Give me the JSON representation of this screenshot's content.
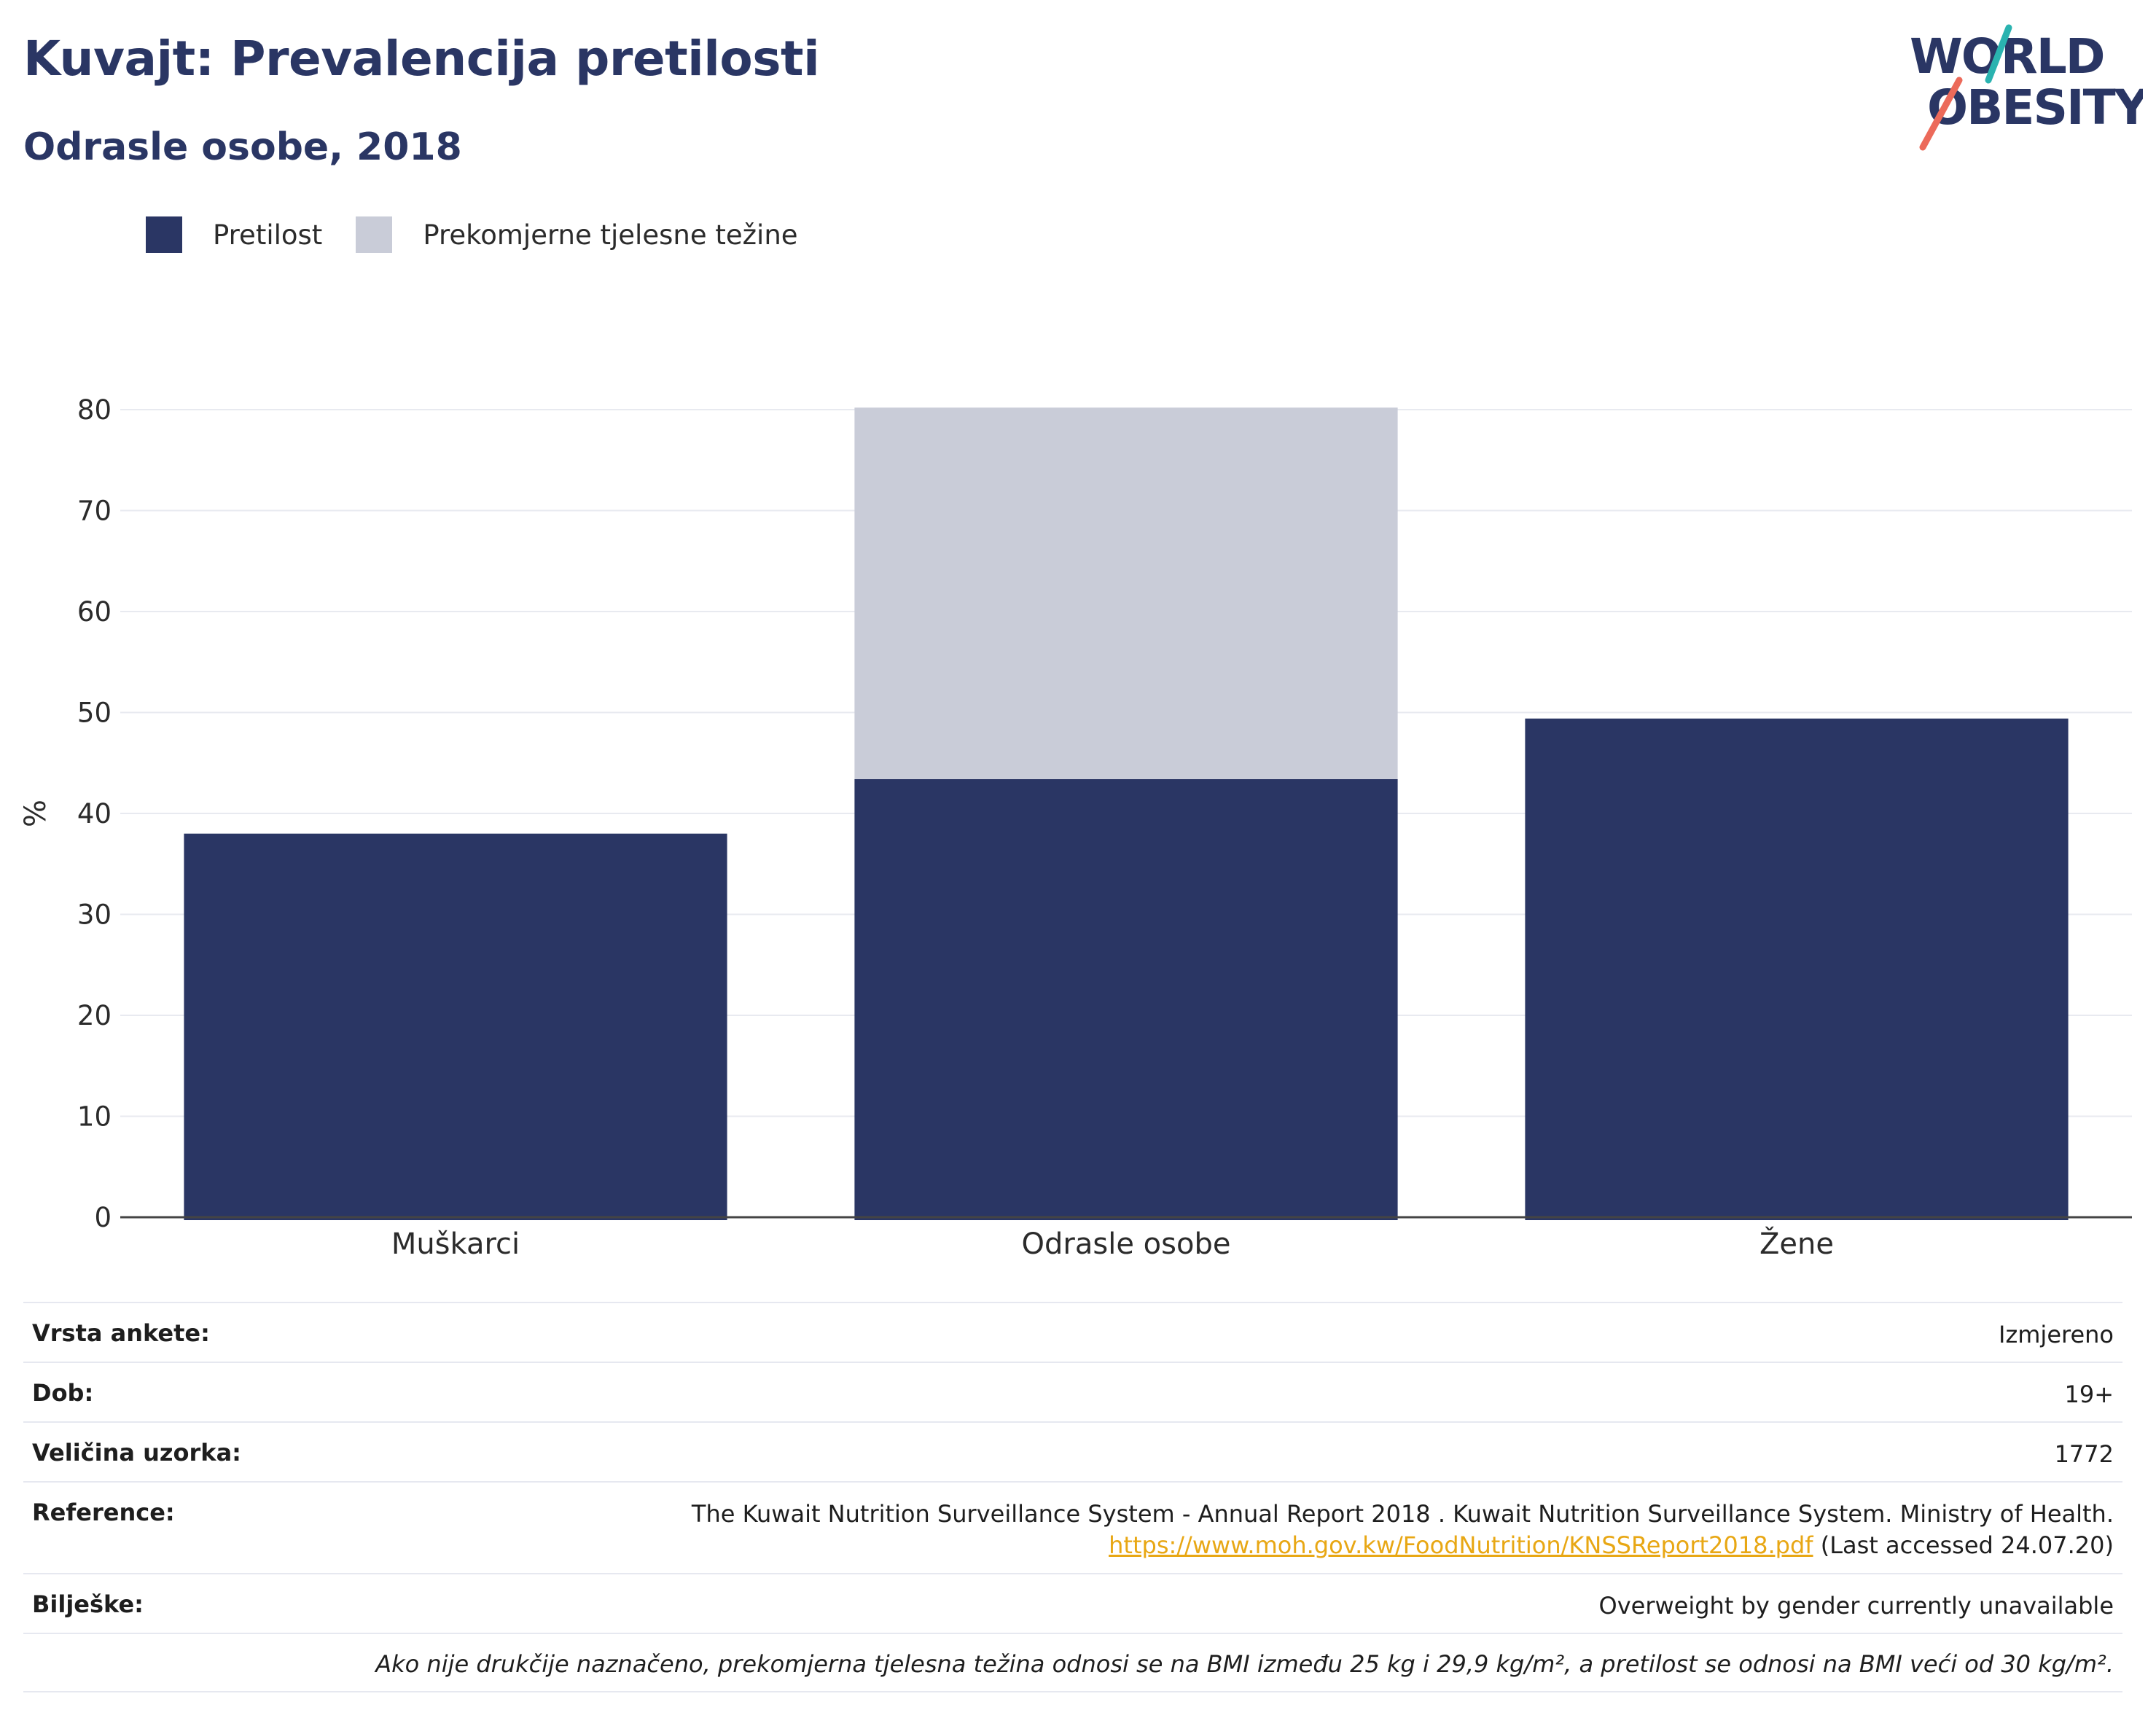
{
  "header": {
    "title": "Kuvajt: Prevalencija pretilosti",
    "subtitle": "Odrasle osobe, 2018"
  },
  "logo": {
    "line1": "WORLD",
    "line2": "OBESITY"
  },
  "colors": {
    "primary": "#2a3664",
    "obesity": "#2a3664",
    "overweight": "#c9ccd8",
    "link": "#e8a714",
    "logo_teal": "#2ab3b0",
    "logo_coral": "#ec6a5a"
  },
  "legend": [
    {
      "label": "Pretilost",
      "color": "#2a3664"
    },
    {
      "label": "Prekomjerne tjelesne težine",
      "color": "#c9ccd8"
    }
  ],
  "chart_data": {
    "type": "bar",
    "stacked": true,
    "categories": [
      "Muškarci",
      "Odrasle osobe",
      "Žene"
    ],
    "series": [
      {
        "name": "Pretilost",
        "values": [
          38.0,
          43.4,
          49.4
        ]
      },
      {
        "name": "Prekomjerne tjelesne težine",
        "values": [
          null,
          36.8,
          null
        ]
      }
    ],
    "ylabel": "%",
    "ylim": [
      0,
      80
    ],
    "yticks": [
      0,
      10,
      20,
      30,
      40,
      50,
      60,
      70,
      80
    ],
    "grid": true,
    "legend_position": "top-left"
  },
  "info": {
    "survey_type": {
      "key": "Vrsta ankete:",
      "value": "Izmjereno"
    },
    "age": {
      "key": "Dob:",
      "value": "19+"
    },
    "sample_size": {
      "key": "Veličina uzorka:",
      "value": "1772"
    },
    "reference": {
      "key": "Reference:",
      "text": "The Kuwait Nutrition Surveillance System - Annual Report 2018 . Kuwait Nutrition Surveillance System. Ministry of Health.",
      "link": "https://www.moh.gov.kw/FoodNutrition/KNSSReport2018.pdf",
      "accessed": "(Last accessed 24.07.20)"
    },
    "notes": {
      "key": "Bilješke:",
      "value": "Overweight by gender currently unavailable"
    },
    "footnote": "Ako nije drukčije naznačeno, prekomjerna tjelesna težina odnosi se na BMI između 25 kg i 29,9 kg/m², a pretilost se odnosi na BMI veći od 30 kg/m²."
  }
}
